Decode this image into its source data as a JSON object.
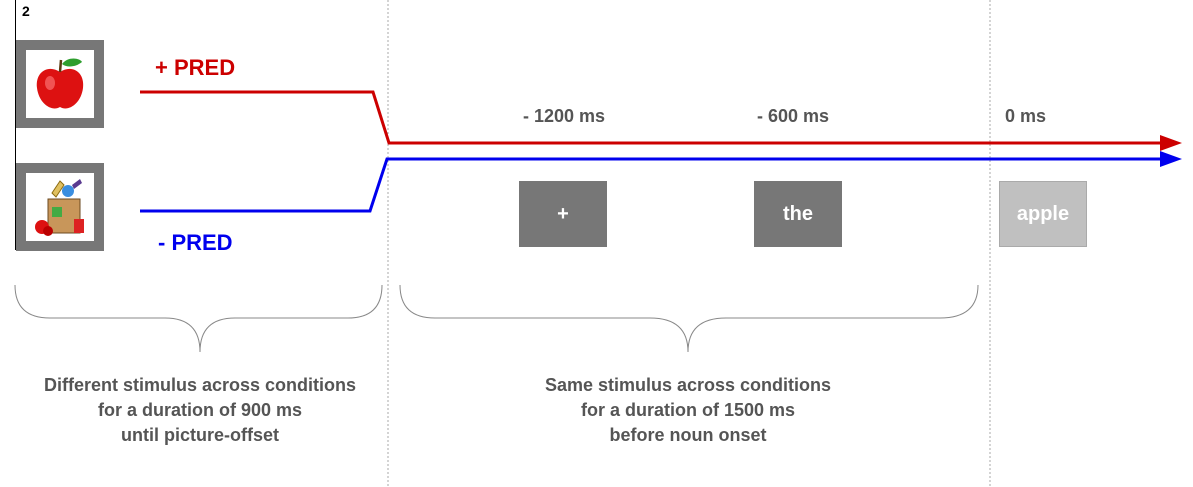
{
  "panel_number": "2",
  "conditions": {
    "plus_pred": {
      "label": "+ PRED",
      "color": "#cc0000",
      "picture": "apple-icon"
    },
    "minus_pred": {
      "label": "- PRED",
      "color": "#0000ee",
      "picture": "grocery-bag-icon"
    }
  },
  "timeline": [
    {
      "time": "- 1200 ms",
      "word": "+"
    },
    {
      "time": "- 600 ms",
      "word": "the"
    },
    {
      "time": "0 ms",
      "word": "apple"
    }
  ],
  "captions": {
    "left": [
      "Different stimulus across conditions",
      "for a duration of 900 ms",
      "until picture-offset"
    ],
    "right": [
      "Same stimulus across conditions",
      "for a duration of 1500 ms",
      "before noun onset"
    ]
  },
  "colors": {
    "word_box": "#777777",
    "target_box": "#c0c0c0",
    "divider": "#aaaaaa"
  }
}
